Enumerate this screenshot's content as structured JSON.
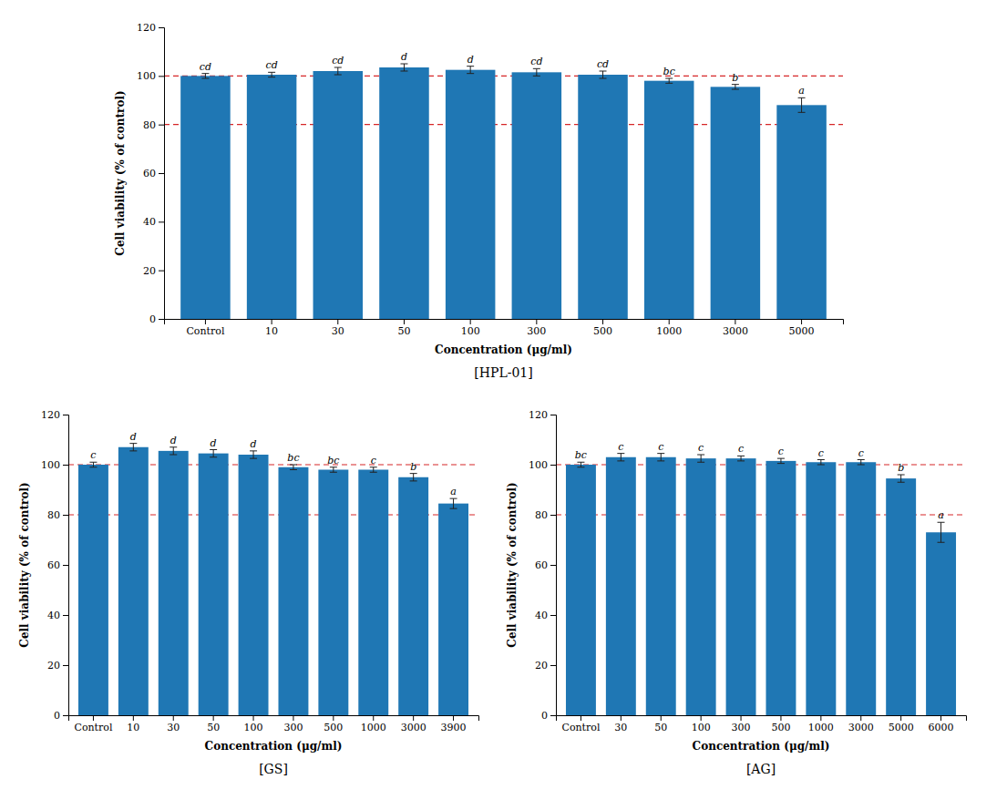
{
  "chart_data": [
    {
      "type": "bar",
      "title": "[HPL-01]",
      "xlabel": "Concentration (μg/ml)",
      "ylabel": "Cell viability (% of control)",
      "categories": [
        "Control",
        "10",
        "30",
        "50",
        "100",
        "300",
        "500",
        "1000",
        "3000",
        "5000"
      ],
      "values": [
        100.0,
        100.5,
        102.0,
        103.5,
        102.5,
        101.5,
        100.5,
        98.0,
        95.5,
        88.0
      ],
      "errors": [
        1.0,
        1.0,
        1.5,
        1.5,
        1.5,
        1.5,
        1.5,
        1.0,
        1.0,
        3.0
      ],
      "letters": [
        "cd",
        "cd",
        "cd",
        "d",
        "d",
        "cd",
        "cd",
        "bc",
        "b",
        "a"
      ],
      "hlines": [
        100,
        80
      ],
      "ylim": [
        0,
        120
      ],
      "yticks": [
        0,
        20,
        40,
        60,
        80,
        100,
        120
      ],
      "grid": false
    },
    {
      "type": "bar",
      "title": "[GS]",
      "xlabel": "Concentration (μg/ml)",
      "ylabel": "Cell viability (% of control)",
      "categories": [
        "Control",
        "10",
        "30",
        "50",
        "100",
        "300",
        "500",
        "1000",
        "3000",
        "3900"
      ],
      "values": [
        100.0,
        107.0,
        105.5,
        104.5,
        104.0,
        99.0,
        98.0,
        98.0,
        95.0,
        84.5
      ],
      "errors": [
        1.0,
        1.5,
        1.5,
        1.5,
        1.5,
        1.0,
        1.0,
        1.0,
        1.5,
        2.0
      ],
      "letters": [
        "c",
        "d",
        "d",
        "d",
        "d",
        "bc",
        "bc",
        "c",
        "b",
        "a"
      ],
      "hlines": [
        100,
        80
      ],
      "ylim": [
        0,
        120
      ],
      "yticks": [
        0,
        20,
        40,
        60,
        80,
        100,
        120
      ],
      "grid": false
    },
    {
      "type": "bar",
      "title": "[AG]",
      "xlabel": "Concentration (μg/ml)",
      "ylabel": "Cell viability (% of control)",
      "categories": [
        "Control",
        "30",
        "50",
        "100",
        "300",
        "500",
        "1000",
        "3000",
        "5000",
        "6000"
      ],
      "values": [
        100.0,
        103.0,
        103.0,
        102.5,
        102.5,
        101.5,
        101.0,
        101.0,
        94.5,
        73.0
      ],
      "errors": [
        1.0,
        1.5,
        1.5,
        1.5,
        1.0,
        1.0,
        1.0,
        1.0,
        1.5,
        4.0
      ],
      "letters": [
        "bc",
        "c",
        "c",
        "c",
        "c",
        "c",
        "c",
        "c",
        "b",
        "a"
      ],
      "hlines": [
        100,
        80
      ],
      "ylim": [
        0,
        120
      ],
      "yticks": [
        0,
        20,
        40,
        60,
        80,
        100,
        120
      ],
      "grid": false
    }
  ]
}
